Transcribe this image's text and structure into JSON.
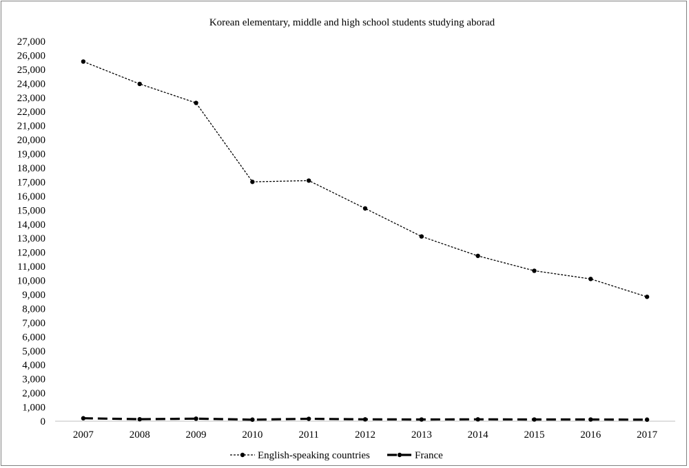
{
  "chart_data": {
    "type": "line",
    "title": "Korean elementary, middle and high school students studying aborad",
    "xlabel": "",
    "ylabel": "",
    "categories": [
      "2007",
      "2008",
      "2009",
      "2010",
      "2011",
      "2012",
      "2013",
      "2014",
      "2015",
      "2016",
      "2017"
    ],
    "ylim": [
      0,
      27000
    ],
    "y_ticks": [
      "0",
      "1,000",
      "2,000",
      "3,000",
      "4,000",
      "5,000",
      "6,000",
      "7,000",
      "8,000",
      "9,000",
      "10,000",
      "11,000",
      "12,000",
      "13,000",
      "14,000",
      "15,000",
      "16,000",
      "17,000",
      "18,000",
      "19,000",
      "20,000",
      "21,000",
      "22,000",
      "23,000",
      "24,000",
      "25,000",
      "26,000",
      "27,000"
    ],
    "grid": false,
    "legend_position": "bottom",
    "series": [
      {
        "name": "English-speaking countries",
        "line_style": "dotted",
        "color": "#000000",
        "values": [
          25560,
          23970,
          22620,
          17010,
          17100,
          15120,
          13130,
          11750,
          10690,
          10110,
          8840
        ]
      },
      {
        "name": "France",
        "line_style": "dashed",
        "color": "#000000",
        "values": [
          210,
          140,
          180,
          110,
          170,
          130,
          120,
          130,
          120,
          120,
          110
        ]
      }
    ]
  }
}
